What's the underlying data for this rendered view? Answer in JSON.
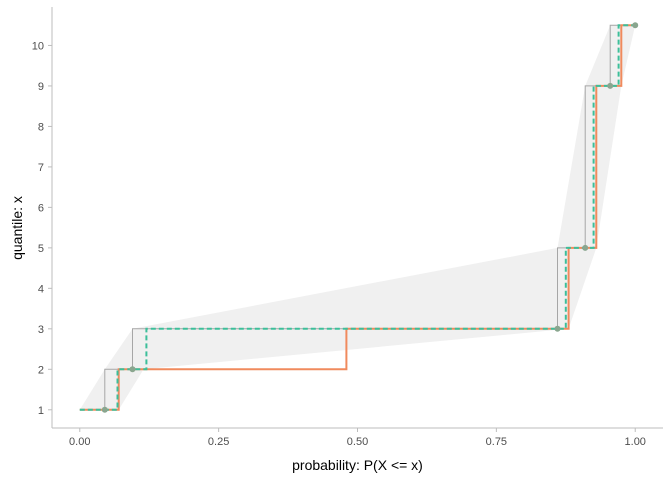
{
  "chart_data": {
    "type": "line",
    "title": "",
    "xlabel": "probability: P(X <= x)",
    "ylabel": "quantile: x",
    "xlim": [
      -0.05,
      1.05
    ],
    "ylim": [
      0.55,
      10.95
    ],
    "x_ticks": [
      0.0,
      0.25,
      0.5,
      0.75,
      1.0
    ],
    "x_tick_labels": [
      "0.00",
      "0.25",
      "0.50",
      "0.75",
      "1.00"
    ],
    "y_ticks": [
      1,
      2,
      3,
      4,
      5,
      6,
      7,
      8,
      9,
      10
    ],
    "y_tick_labels": [
      "1",
      "2",
      "3",
      "4",
      "5",
      "6",
      "7",
      "8",
      "9",
      "10"
    ],
    "grid": false,
    "legend": "none",
    "colors": {
      "band_fill": "#f0f0f0",
      "band_line": "#a6a6a6",
      "solid_step": "#f08a5d",
      "dashed_step": "#3cbf9a",
      "points": "#8aa68f",
      "axis": "#bdbdbd",
      "tick_text": "#4d4d4d"
    },
    "band_upper": [
      {
        "x": 0.0,
        "y": 1
      },
      {
        "x": 0.045,
        "y": 2
      },
      {
        "x": 0.095,
        "y": 3
      },
      {
        "x": 0.86,
        "y": 5
      },
      {
        "x": 0.91,
        "y": 9
      },
      {
        "x": 0.955,
        "y": 10.5
      },
      {
        "x": 1.0,
        "y": 10.5
      }
    ],
    "band_lower": [
      {
        "x": 1.0,
        "y": 10.5
      },
      {
        "x": 0.975,
        "y": 9
      },
      {
        "x": 0.93,
        "y": 5
      },
      {
        "x": 0.88,
        "y": 3
      },
      {
        "x": 0.115,
        "y": 2
      },
      {
        "x": 0.07,
        "y": 1
      },
      {
        "x": 0.0,
        "y": 1
      }
    ],
    "step_outline": [
      {
        "x": 0.0,
        "y": 1
      },
      {
        "x": 0.045,
        "y": 1
      },
      {
        "x": 0.045,
        "y": 2
      },
      {
        "x": 0.095,
        "y": 2
      },
      {
        "x": 0.095,
        "y": 3
      },
      {
        "x": 0.86,
        "y": 3
      },
      {
        "x": 0.86,
        "y": 5
      },
      {
        "x": 0.91,
        "y": 5
      },
      {
        "x": 0.91,
        "y": 9
      },
      {
        "x": 0.955,
        "y": 9
      },
      {
        "x": 0.955,
        "y": 10.5
      },
      {
        "x": 1.0,
        "y": 10.5
      }
    ],
    "series": [
      {
        "style": "solid",
        "points": [
          {
            "x": 0.0,
            "y": 1
          },
          {
            "x": 0.07,
            "y": 1
          },
          {
            "x": 0.07,
            "y": 2
          },
          {
            "x": 0.48,
            "y": 2
          },
          {
            "x": 0.48,
            "y": 3
          },
          {
            "x": 0.88,
            "y": 3
          },
          {
            "x": 0.88,
            "y": 5
          },
          {
            "x": 0.93,
            "y": 5
          },
          {
            "x": 0.93,
            "y": 9
          },
          {
            "x": 0.975,
            "y": 9
          },
          {
            "x": 0.975,
            "y": 10.5
          },
          {
            "x": 1.0,
            "y": 10.5
          }
        ]
      },
      {
        "style": "dashed",
        "points": [
          {
            "x": 0.0,
            "y": 1
          },
          {
            "x": 0.068,
            "y": 1
          },
          {
            "x": 0.068,
            "y": 2
          },
          {
            "x": 0.12,
            "y": 2
          },
          {
            "x": 0.12,
            "y": 3
          },
          {
            "x": 0.875,
            "y": 3
          },
          {
            "x": 0.875,
            "y": 5
          },
          {
            "x": 0.925,
            "y": 5
          },
          {
            "x": 0.925,
            "y": 9
          },
          {
            "x": 0.97,
            "y": 9
          },
          {
            "x": 0.97,
            "y": 10.5
          },
          {
            "x": 1.0,
            "y": 10.5
          }
        ]
      }
    ],
    "points": [
      {
        "x": 0.045,
        "y": 1
      },
      {
        "x": 0.095,
        "y": 2
      },
      {
        "x": 0.86,
        "y": 3
      },
      {
        "x": 0.91,
        "y": 5
      },
      {
        "x": 0.955,
        "y": 9
      },
      {
        "x": 1.0,
        "y": 10.5
      }
    ]
  }
}
